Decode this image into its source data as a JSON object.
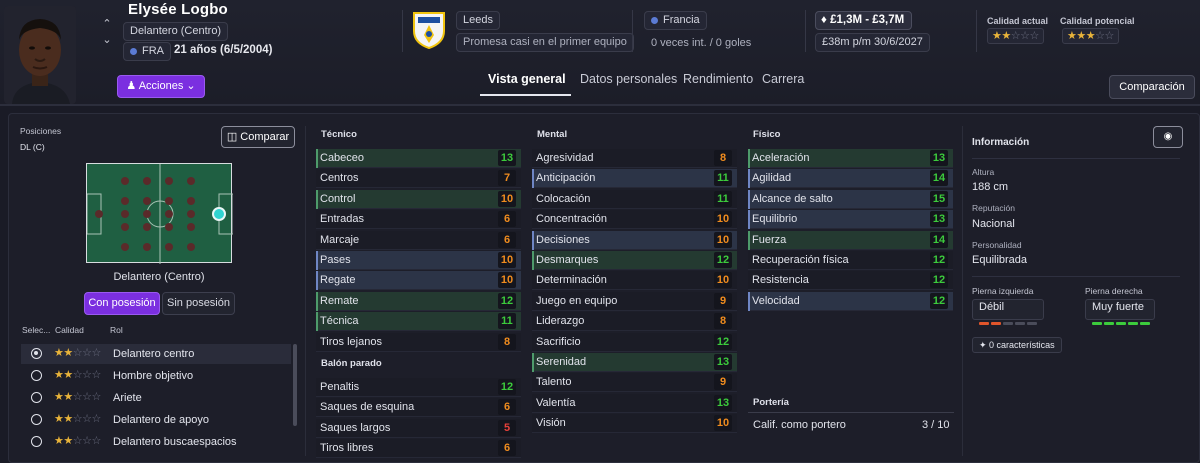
{
  "player": {
    "name": "Elysée Logbo",
    "position": "Delantero (Centro)",
    "nationality_code": "FRA",
    "age_text": "21 años (6/5/2004)",
    "actions_label": "Acciones",
    "prev_icon": "chevron-up-icon",
    "next_icon": "chevron-down-icon"
  },
  "club": {
    "name": "Leeds",
    "status": "Promesa casi en el primer equipo",
    "logo_icon": "leeds-crest-icon"
  },
  "international": {
    "country": "Francia",
    "caps": "0 veces int. / 0 goles"
  },
  "contract": {
    "value_range": "£1,3M - £3,7M",
    "wage_expiry": "£38m p/m 30/6/2027"
  },
  "quality": {
    "current_label": "Calidad actual",
    "current_stars": 2,
    "potential_label": "Calidad potencial",
    "potential_stars": 3,
    "max_stars": 5,
    "star_colors": {
      "on": "#e9b43a",
      "off": "#6b6e80"
    }
  },
  "tabs": [
    {
      "label": "Vista general",
      "active": true
    },
    {
      "label": "Datos personales",
      "active": false
    },
    {
      "label": "Rendimiento",
      "active": false
    },
    {
      "label": "Carrera",
      "active": false
    }
  ],
  "comparison_label": "Comparación",
  "positions": {
    "label": "Posiciones",
    "value": "DL (C)",
    "compare_label": "Comparar",
    "pitch_label": "Delantero (Centro)",
    "pitch_color": "#1f5f42",
    "highlight_color": "#2fd3d0",
    "with_ball_label": "Con posesión",
    "without_ball_label": "Sin posesión"
  },
  "roles": {
    "col_select": "Selec...",
    "col_quality": "Calidad",
    "col_role": "Rol",
    "items": [
      {
        "name": "Delantero centro",
        "stars": 2,
        "selected": true
      },
      {
        "name": "Hombre objetivo",
        "stars": 2,
        "selected": false
      },
      {
        "name": "Ariete",
        "stars": 2,
        "selected": false
      },
      {
        "name": "Delantero de apoyo",
        "stars": 2,
        "selected": false
      },
      {
        "name": "Delantero buscaespacios",
        "stars": 2,
        "selected": false
      }
    ]
  },
  "technical": {
    "title": "Técnico",
    "items": [
      {
        "name": "Cabeceo",
        "value": "13",
        "hl": "green"
      },
      {
        "name": "Centros",
        "value": "7",
        "hl": ""
      },
      {
        "name": "Control",
        "value": "10",
        "hl": "green"
      },
      {
        "name": "Entradas",
        "value": "6",
        "hl": ""
      },
      {
        "name": "Marcaje",
        "value": "6",
        "hl": ""
      },
      {
        "name": "Pases",
        "value": "10",
        "hl": "blue"
      },
      {
        "name": "Regate",
        "value": "10",
        "hl": "blue"
      },
      {
        "name": "Remate",
        "value": "12",
        "hl": "green"
      },
      {
        "name": "Técnica",
        "value": "11",
        "hl": "green"
      },
      {
        "name": "Tiros lejanos",
        "value": "8",
        "hl": ""
      }
    ]
  },
  "set_pieces": {
    "title": "Balón parado",
    "items": [
      {
        "name": "Penaltis",
        "value": "12",
        "hl": ""
      },
      {
        "name": "Saques de esquina",
        "value": "6",
        "hl": ""
      },
      {
        "name": "Saques largos",
        "value": "5",
        "hl": ""
      },
      {
        "name": "Tiros libres",
        "value": "6",
        "hl": ""
      }
    ]
  },
  "mental": {
    "title": "Mental",
    "items": [
      {
        "name": "Agresividad",
        "value": "8",
        "hl": ""
      },
      {
        "name": "Anticipación",
        "value": "11",
        "hl": "blue"
      },
      {
        "name": "Colocación",
        "value": "11",
        "hl": ""
      },
      {
        "name": "Concentración",
        "value": "10",
        "hl": ""
      },
      {
        "name": "Decisiones",
        "value": "10",
        "hl": "blue"
      },
      {
        "name": "Desmarques",
        "value": "12",
        "hl": "green"
      },
      {
        "name": "Determinación",
        "value": "10",
        "hl": ""
      },
      {
        "name": "Juego en equipo",
        "value": "9",
        "hl": ""
      },
      {
        "name": "Liderazgo",
        "value": "8",
        "hl": ""
      },
      {
        "name": "Sacrificio",
        "value": "12",
        "hl": ""
      },
      {
        "name": "Serenidad",
        "value": "13",
        "hl": "green"
      },
      {
        "name": "Talento",
        "value": "9",
        "hl": ""
      },
      {
        "name": "Valentía",
        "value": "13",
        "hl": ""
      },
      {
        "name": "Visión",
        "value": "10",
        "hl": ""
      }
    ]
  },
  "physical": {
    "title": "Físico",
    "items": [
      {
        "name": "Aceleración",
        "value": "13",
        "hl": "green"
      },
      {
        "name": "Agilidad",
        "value": "14",
        "hl": "blue"
      },
      {
        "name": "Alcance de salto",
        "value": "15",
        "hl": "blue"
      },
      {
        "name": "Equilibrio",
        "value": "13",
        "hl": "blue"
      },
      {
        "name": "Fuerza",
        "value": "14",
        "hl": "green"
      },
      {
        "name": "Recuperación física",
        "value": "12",
        "hl": ""
      },
      {
        "name": "Resistencia",
        "value": "12",
        "hl": ""
      },
      {
        "name": "Velocidad",
        "value": "12",
        "hl": "blue"
      }
    ]
  },
  "goalkeeping": {
    "title": "Portería",
    "rating_label": "Calif. como portero",
    "rating_value": "3 / 10"
  },
  "info": {
    "title": "Información",
    "height_label": "Altura",
    "height": "188 cm",
    "reputation_label": "Reputación",
    "reputation": "Nacional",
    "personality_label": "Personalidad",
    "personality": "Equilibrada",
    "left_foot_label": "Pierna izquierda",
    "left_foot": "Débil",
    "left_foot_level": 2,
    "right_foot_label": "Pierna derecha",
    "right_foot": "Muy fuerte",
    "right_foot_level": 5,
    "traits": "0 características",
    "foot_colors": {
      "weak": "#e0552b",
      "strong": "#3ccb3c",
      "empty": "#4a4c5a"
    }
  }
}
